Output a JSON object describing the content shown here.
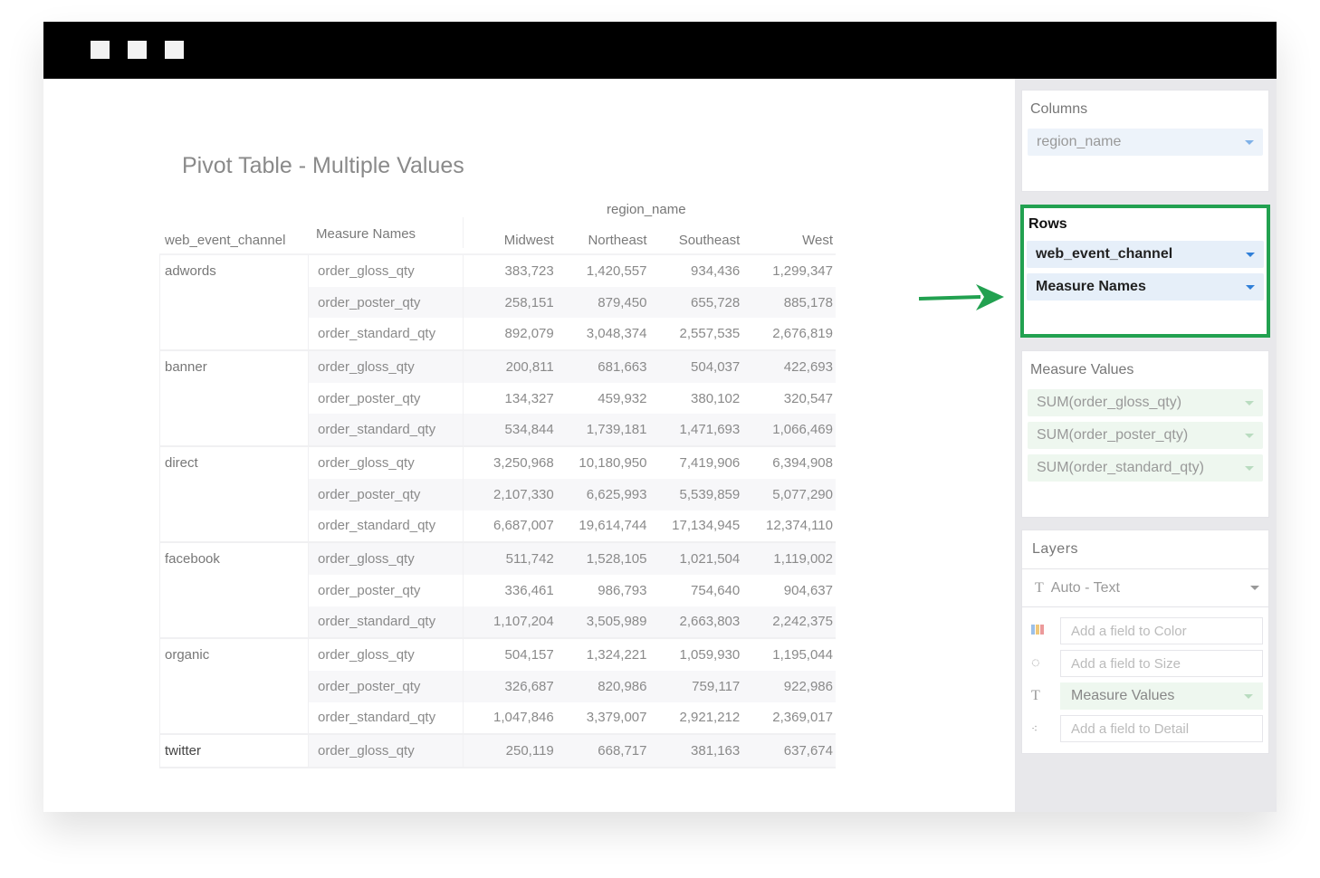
{
  "window": {
    "controls": [
      "square",
      "square",
      "square"
    ]
  },
  "chart": {
    "title": "Pivot Table - Multiple Values",
    "column_header": "region_name",
    "headers": [
      "web_event_channel",
      "Measure Names",
      "Midwest",
      "Northeast",
      "Southeast",
      "West"
    ],
    "groups": [
      {
        "channel": "adwords",
        "rows": [
          [
            "order_gloss_qty",
            "383,723",
            "1,420,557",
            "934,436",
            "1,299,347"
          ],
          [
            "order_poster_qty",
            "258,151",
            "879,450",
            "655,728",
            "885,178"
          ],
          [
            "order_standard_qty",
            "892,079",
            "3,048,374",
            "2,557,535",
            "2,676,819"
          ]
        ]
      },
      {
        "channel": "banner",
        "rows": [
          [
            "order_gloss_qty",
            "200,811",
            "681,663",
            "504,037",
            "422,693"
          ],
          [
            "order_poster_qty",
            "134,327",
            "459,932",
            "380,102",
            "320,547"
          ],
          [
            "order_standard_qty",
            "534,844",
            "1,739,181",
            "1,471,693",
            "1,066,469"
          ]
        ]
      },
      {
        "channel": "direct",
        "rows": [
          [
            "order_gloss_qty",
            "3,250,968",
            "10,180,950",
            "7,419,906",
            "6,394,908"
          ],
          [
            "order_poster_qty",
            "2,107,330",
            "6,625,993",
            "5,539,859",
            "5,077,290"
          ],
          [
            "order_standard_qty",
            "6,687,007",
            "19,614,744",
            "17,134,945",
            "12,374,110"
          ]
        ]
      },
      {
        "channel": "facebook",
        "rows": [
          [
            "order_gloss_qty",
            "511,742",
            "1,528,105",
            "1,021,504",
            "1,119,002"
          ],
          [
            "order_poster_qty",
            "336,461",
            "986,793",
            "754,640",
            "904,637"
          ],
          [
            "order_standard_qty",
            "1,107,204",
            "3,505,989",
            "2,663,803",
            "2,242,375"
          ]
        ]
      },
      {
        "channel": "organic",
        "rows": [
          [
            "order_gloss_qty",
            "504,157",
            "1,324,221",
            "1,059,930",
            "1,195,044"
          ],
          [
            "order_poster_qty",
            "326,687",
            "820,986",
            "759,117",
            "922,986"
          ],
          [
            "order_standard_qty",
            "1,047,846",
            "3,379,007",
            "2,921,212",
            "2,369,017"
          ]
        ]
      },
      {
        "channel": "twitter",
        "rows": [
          [
            "order_gloss_qty",
            "250,119",
            "668,717",
            "381,163",
            "637,674"
          ]
        ]
      }
    ]
  },
  "sidebar": {
    "columns": {
      "title": "Columns",
      "fields": [
        "region_name"
      ]
    },
    "rows": {
      "title": "Rows",
      "fields": [
        "web_event_channel",
        "Measure Names"
      ],
      "highlight_color": "#22a150"
    },
    "measure_values": {
      "title": "Measure Values",
      "fields": [
        "SUM(order_gloss_qty)",
        "SUM(order_poster_qty)",
        "SUM(order_standard_qty)"
      ]
    },
    "layers": {
      "title": "Layers",
      "mark_type": "Auto - Text",
      "color_placeholder": "Add a field to Color",
      "size_placeholder": "Add a field to Size",
      "text_field": "Measure Values",
      "detail_placeholder": "Add a field to Detail"
    }
  },
  "annotation": {
    "arrow_color": "#22a150"
  }
}
